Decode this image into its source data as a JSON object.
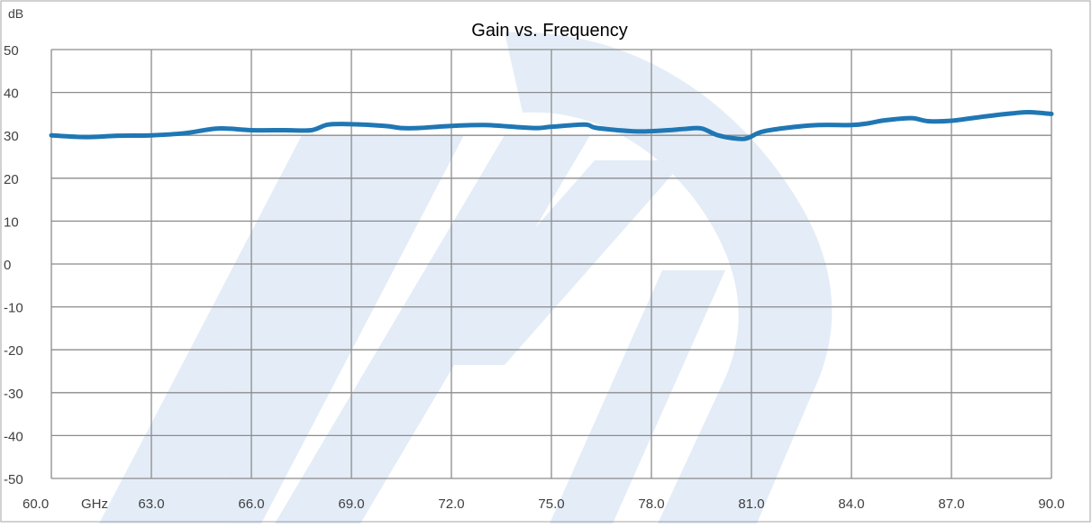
{
  "chart_data": {
    "type": "line",
    "title": "Gain vs. Frequency",
    "xlabel": "GHz",
    "ylabel": "dB",
    "xlim": [
      60.0,
      90.0
    ],
    "ylim": [
      -50,
      50
    ],
    "x_ticks": [
      "60.0",
      "63.0",
      "66.0",
      "69.0",
      "72.0",
      "75.0",
      "78.0",
      "81.0",
      "84.0",
      "87.0",
      "90.0"
    ],
    "y_ticks": [
      "50",
      "40",
      "30",
      "20",
      "10",
      "0",
      "-10",
      "-20",
      "-30",
      "-40",
      "-50"
    ],
    "grid": true,
    "series": [
      {
        "color": "#1f77b4",
        "x": [
          60.0,
          61.0,
          62.0,
          63.0,
          64.0,
          65.0,
          66.0,
          67.0,
          67.8,
          68.3,
          69.0,
          70.0,
          70.5,
          71.0,
          72.0,
          73.0,
          74.0,
          74.6,
          75.0,
          76.0,
          76.3,
          77.0,
          77.7,
          78.5,
          79.0,
          79.5,
          80.0,
          80.6,
          80.9,
          81.3,
          82.0,
          83.0,
          84.0,
          84.5,
          85.0,
          85.8,
          86.3,
          87.0,
          88.0,
          88.8,
          89.3,
          90.0
        ],
        "y": [
          30.0,
          29.6,
          29.9,
          30.0,
          30.5,
          31.6,
          31.2,
          31.2,
          31.2,
          32.5,
          32.6,
          32.2,
          31.7,
          31.7,
          32.2,
          32.4,
          31.9,
          31.7,
          32.0,
          32.5,
          31.8,
          31.2,
          30.9,
          31.2,
          31.5,
          31.6,
          30.0,
          29.2,
          29.4,
          30.8,
          31.7,
          32.4,
          32.4,
          32.8,
          33.5,
          34.0,
          33.3,
          33.4,
          34.4,
          35.1,
          35.4,
          35.0
        ]
      }
    ]
  }
}
